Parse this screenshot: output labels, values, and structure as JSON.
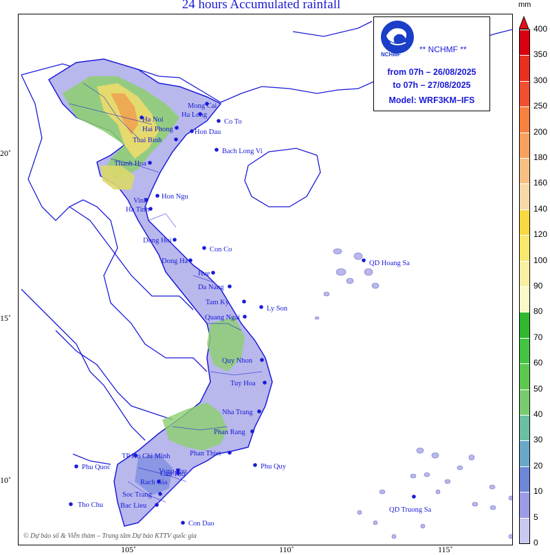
{
  "title": "24 hours Accumulated rainfall",
  "info": {
    "org": "** NCHMF **",
    "logo_text": "NCHMF",
    "from": "from 07h – 26/08/2025",
    "to": "to 07h – 27/08/2025",
    "model": "Model: WRF3KM–IFS"
  },
  "credit": "© Dự báo số & Viễn thám – Trung tâm Dự báo KTTV quốc gia",
  "colorbar": {
    "unit": "mm",
    "levels": [
      "0",
      "5",
      "10",
      "20",
      "30",
      "40",
      "50",
      "60",
      "70",
      "80",
      "90",
      "100",
      "120",
      "140",
      "160",
      "180",
      "200",
      "250",
      "300",
      "350",
      "400"
    ],
    "colors": [
      "#c8c8f0",
      "#9b9be8",
      "#6e86d8",
      "#6aa8c8",
      "#6ac0a0",
      "#78cc6e",
      "#5cc850",
      "#44c444",
      "#30b830",
      "#f8f8c8",
      "#f8f0a0",
      "#f8e870",
      "#f8d840",
      "#f8d8a8",
      "#f8c080",
      "#f8a060",
      "#f88040",
      "#f05030",
      "#e83020",
      "#d80010"
    ]
  },
  "axes": {
    "lon_labels": [
      "105˚",
      "110˚",
      "115˚"
    ],
    "lat_labels": [
      "20˚",
      "15˚",
      "10˚"
    ]
  },
  "places": [
    {
      "name": "Mong Cai"
    },
    {
      "name": "Ha Long"
    },
    {
      "name": "Co To"
    },
    {
      "name": "Ha Noi"
    },
    {
      "name": "Hai Phong"
    },
    {
      "name": "Hon Dau"
    },
    {
      "name": "Thai Binh"
    },
    {
      "name": "Bach Long Vi"
    },
    {
      "name": "Thanh Hoa"
    },
    {
      "name": "Hon Ngu"
    },
    {
      "name": "Vinh"
    },
    {
      "name": "Ha Tinh"
    },
    {
      "name": "Dong Hoi"
    },
    {
      "name": "Con Co"
    },
    {
      "name": "Dong Ha"
    },
    {
      "name": "Hue"
    },
    {
      "name": "Da Nang"
    },
    {
      "name": "Tam Ky"
    },
    {
      "name": "Ly Son"
    },
    {
      "name": "Quang Ngai"
    },
    {
      "name": "Quy Nhon"
    },
    {
      "name": "Tuy Hoa"
    },
    {
      "name": "Nha Trang"
    },
    {
      "name": "Phan Rang"
    },
    {
      "name": "Phan Thiet"
    },
    {
      "name": "TP Ho Chi Minh"
    },
    {
      "name": "Vung Tau"
    },
    {
      "name": "Phu Quy"
    },
    {
      "name": "Phu Quoc"
    },
    {
      "name": "Rach Gia"
    },
    {
      "name": "Can Tho"
    },
    {
      "name": "Soc Trang"
    },
    {
      "name": "Bac Lieu"
    },
    {
      "name": "Tho Chu"
    },
    {
      "name": "Con Dao"
    },
    {
      "name": "QD Hoang Sa"
    },
    {
      "name": "QD Truong Sa"
    }
  ]
}
